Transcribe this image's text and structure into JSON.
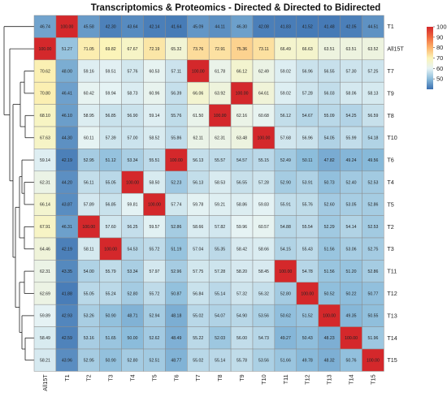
{
  "chart_data": {
    "type": "heatmap",
    "title": "Transcriptomics & Proteomics - Directed & Directed to Bidirected",
    "row_labels": [
      "T1",
      "All15T",
      "T7",
      "T9",
      "T8",
      "T10",
      "T6",
      "T4",
      "T5",
      "T2",
      "T3",
      "T11",
      "T12",
      "T13",
      "T14",
      "T15"
    ],
    "col_labels": [
      "All15T",
      "T1",
      "T2",
      "T3",
      "T4",
      "T5",
      "T6",
      "T7",
      "T8",
      "T9",
      "T10",
      "T11",
      "T12",
      "T13",
      "T14",
      "T15"
    ],
    "values": [
      [
        46.74,
        100.0,
        45.58,
        42.3,
        43.64,
        42.14,
        41.64,
        45.09,
        44.11,
        46.3,
        42.08,
        41.83,
        41.52,
        41.48,
        42.05,
        44.51
      ],
      [
        100.0,
        51.27,
        71.05,
        69.82,
        67.67,
        72.19,
        65.32,
        73.76,
        72.91,
        75.36,
        73.11,
        66.49,
        66.63,
        63.51,
        63.51,
        63.52
      ],
      [
        70.62,
        48.0,
        59.16,
        59.51,
        57.76,
        60.53,
        57.11,
        100.0,
        61.78,
        66.12,
        62.49,
        59.02,
        56.96,
        56.55,
        57.3,
        57.25
      ],
      [
        70.8,
        46.41,
        60.42,
        59.94,
        58.73,
        60.96,
        56.39,
        66.06,
        63.92,
        100.0,
        64.61,
        59.02,
        57.28,
        56.03,
        58.06,
        58.13
      ],
      [
        68.1,
        46.1,
        58.95,
        56.85,
        56.9,
        59.14,
        55.76,
        61.5,
        100.0,
        62.16,
        60.68,
        56.12,
        54.67,
        55.09,
        54.25,
        56.59
      ],
      [
        67.63,
        44.3,
        60.11,
        57.39,
        57.0,
        58.52,
        55.86,
        62.11,
        62.31,
        63.48,
        100.0,
        57.68,
        56.96,
        54.05,
        55.99,
        54.18
      ],
      [
        59.14,
        42.19,
        52.95,
        51.12,
        53.34,
        55.51,
        100.0,
        56.13,
        55.57,
        54.57,
        55.15,
        52.49,
        50.11,
        47.82,
        49.24,
        49.56
      ],
      [
        62.31,
        44.2,
        56.11,
        55.05,
        100.0,
        58.5,
        52.23,
        56.13,
        58.53,
        56.55,
        57.28,
        52.9,
        53.91,
        50.73,
        52.4,
        52.53
      ],
      [
        66.14,
        43.87,
        57.89,
        56.85,
        59.81,
        100.0,
        57.74,
        59.78,
        59.21,
        58.86,
        59.83,
        55.91,
        55.76,
        52.6,
        53.05,
        52.86
      ],
      [
        67.91,
        46.31,
        100.0,
        57.6,
        56.25,
        59.57,
        52.86,
        58.66,
        57.82,
        59.96,
        60.57,
        54.88,
        55.54,
        52.29,
        54.14,
        52.53
      ],
      [
        64.46,
        42.19,
        58.11,
        100.0,
        54.53,
        55.72,
        51.19,
        57.04,
        55.35,
        58.42,
        58.66,
        54.15,
        55.43,
        51.56,
        53.06,
        52.75
      ],
      [
        62.31,
        43.35,
        54.0,
        55.79,
        53.34,
        57.97,
        52.96,
        57.75,
        57.28,
        58.2,
        58.45,
        100.0,
        54.78,
        51.56,
        51.2,
        52.86
      ],
      [
        62.69,
        41.88,
        55.05,
        55.24,
        52.8,
        55.72,
        50.87,
        56.84,
        55.14,
        57.32,
        56.32,
        52.8,
        100.0,
        50.52,
        50.22,
        50.77
      ],
      [
        59.89,
        42.93,
        53.26,
        50.9,
        48.71,
        52.94,
        48.18,
        55.02,
        54.07,
        54.9,
        53.56,
        50.62,
        51.52,
        100.0,
        49.35,
        50.55
      ],
      [
        58.49,
        42.59,
        53.16,
        51.65,
        50.0,
        52.62,
        48.49,
        55.22,
        52.03,
        56.0,
        54.73,
        49.27,
        50.43,
        48.23,
        100.0,
        51.96
      ],
      [
        58.21,
        43.96,
        52.95,
        50.9,
        52.8,
        52.51,
        48.77,
        55.02,
        55.14,
        55.78,
        53.56,
        51.66,
        49.78,
        48.32,
        50.76,
        100.0
      ]
    ],
    "color_scale": {
      "min": 40,
      "max": 100,
      "stops": [
        {
          "value": 40,
          "color": "#3a6fb0"
        },
        {
          "value": 50,
          "color": "#8bbcdb"
        },
        {
          "value": 60,
          "color": "#e6f3f4"
        },
        {
          "value": 70,
          "color": "#fbf4b8"
        },
        {
          "value": 80,
          "color": "#fdb46c"
        },
        {
          "value": 90,
          "color": "#f0693f"
        },
        {
          "value": 100,
          "color": "#d4282b"
        }
      ],
      "ticks": [
        50,
        60,
        70,
        80,
        90,
        100
      ]
    },
    "dendrogram": "row clustering tree on left",
    "grid_color": "#8c8c8c"
  }
}
